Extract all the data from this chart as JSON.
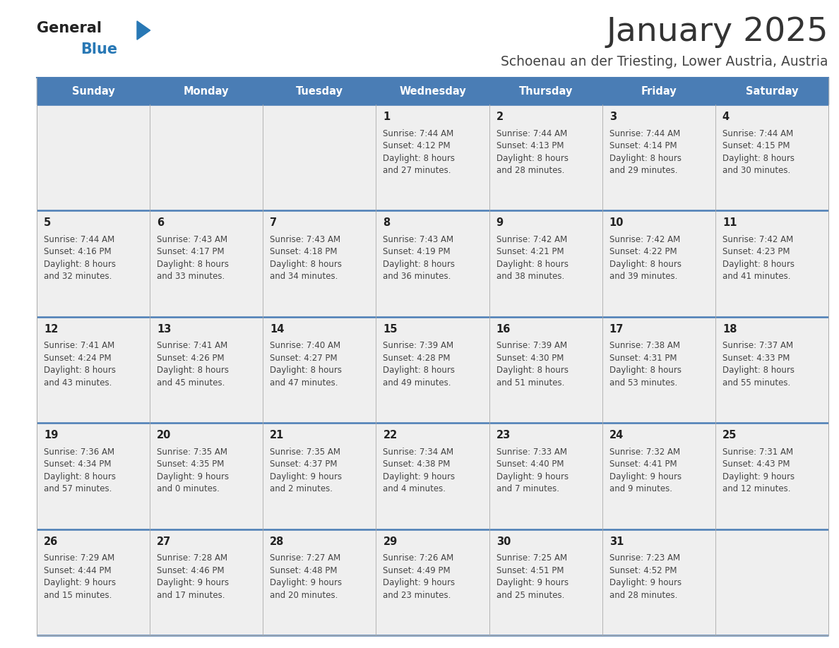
{
  "title": "January 2025",
  "subtitle": "Schoenau an der Triesting, Lower Austria, Austria",
  "days_of_week": [
    "Sunday",
    "Monday",
    "Tuesday",
    "Wednesday",
    "Thursday",
    "Friday",
    "Saturday"
  ],
  "header_bg_color": "#4a7db5",
  "header_text_color": "#ffffff",
  "cell_bg_color": "#efefef",
  "divider_color": "#4a7db5",
  "title_color": "#333333",
  "subtitle_color": "#444444",
  "day_num_color": "#222222",
  "cell_text_color": "#444444",
  "logo_general_color": "#222222",
  "logo_blue_color": "#2878b5",
  "logo_triangle_color": "#2878b5",
  "grid_line_color": "#aaaaaa",
  "weeks": [
    [
      {
        "day": null,
        "sunrise": null,
        "sunset": null,
        "daylight": null
      },
      {
        "day": null,
        "sunrise": null,
        "sunset": null,
        "daylight": null
      },
      {
        "day": null,
        "sunrise": null,
        "sunset": null,
        "daylight": null
      },
      {
        "day": 1,
        "sunrise": "Sunrise: 7:44 AM",
        "sunset": "Sunset: 4:12 PM",
        "daylight": "Daylight: 8 hours\nand 27 minutes."
      },
      {
        "day": 2,
        "sunrise": "Sunrise: 7:44 AM",
        "sunset": "Sunset: 4:13 PM",
        "daylight": "Daylight: 8 hours\nand 28 minutes."
      },
      {
        "day": 3,
        "sunrise": "Sunrise: 7:44 AM",
        "sunset": "Sunset: 4:14 PM",
        "daylight": "Daylight: 8 hours\nand 29 minutes."
      },
      {
        "day": 4,
        "sunrise": "Sunrise: 7:44 AM",
        "sunset": "Sunset: 4:15 PM",
        "daylight": "Daylight: 8 hours\nand 30 minutes."
      }
    ],
    [
      {
        "day": 5,
        "sunrise": "Sunrise: 7:44 AM",
        "sunset": "Sunset: 4:16 PM",
        "daylight": "Daylight: 8 hours\nand 32 minutes."
      },
      {
        "day": 6,
        "sunrise": "Sunrise: 7:43 AM",
        "sunset": "Sunset: 4:17 PM",
        "daylight": "Daylight: 8 hours\nand 33 minutes."
      },
      {
        "day": 7,
        "sunrise": "Sunrise: 7:43 AM",
        "sunset": "Sunset: 4:18 PM",
        "daylight": "Daylight: 8 hours\nand 34 minutes."
      },
      {
        "day": 8,
        "sunrise": "Sunrise: 7:43 AM",
        "sunset": "Sunset: 4:19 PM",
        "daylight": "Daylight: 8 hours\nand 36 minutes."
      },
      {
        "day": 9,
        "sunrise": "Sunrise: 7:42 AM",
        "sunset": "Sunset: 4:21 PM",
        "daylight": "Daylight: 8 hours\nand 38 minutes."
      },
      {
        "day": 10,
        "sunrise": "Sunrise: 7:42 AM",
        "sunset": "Sunset: 4:22 PM",
        "daylight": "Daylight: 8 hours\nand 39 minutes."
      },
      {
        "day": 11,
        "sunrise": "Sunrise: 7:42 AM",
        "sunset": "Sunset: 4:23 PM",
        "daylight": "Daylight: 8 hours\nand 41 minutes."
      }
    ],
    [
      {
        "day": 12,
        "sunrise": "Sunrise: 7:41 AM",
        "sunset": "Sunset: 4:24 PM",
        "daylight": "Daylight: 8 hours\nand 43 minutes."
      },
      {
        "day": 13,
        "sunrise": "Sunrise: 7:41 AM",
        "sunset": "Sunset: 4:26 PM",
        "daylight": "Daylight: 8 hours\nand 45 minutes."
      },
      {
        "day": 14,
        "sunrise": "Sunrise: 7:40 AM",
        "sunset": "Sunset: 4:27 PM",
        "daylight": "Daylight: 8 hours\nand 47 minutes."
      },
      {
        "day": 15,
        "sunrise": "Sunrise: 7:39 AM",
        "sunset": "Sunset: 4:28 PM",
        "daylight": "Daylight: 8 hours\nand 49 minutes."
      },
      {
        "day": 16,
        "sunrise": "Sunrise: 7:39 AM",
        "sunset": "Sunset: 4:30 PM",
        "daylight": "Daylight: 8 hours\nand 51 minutes."
      },
      {
        "day": 17,
        "sunrise": "Sunrise: 7:38 AM",
        "sunset": "Sunset: 4:31 PM",
        "daylight": "Daylight: 8 hours\nand 53 minutes."
      },
      {
        "day": 18,
        "sunrise": "Sunrise: 7:37 AM",
        "sunset": "Sunset: 4:33 PM",
        "daylight": "Daylight: 8 hours\nand 55 minutes."
      }
    ],
    [
      {
        "day": 19,
        "sunrise": "Sunrise: 7:36 AM",
        "sunset": "Sunset: 4:34 PM",
        "daylight": "Daylight: 8 hours\nand 57 minutes."
      },
      {
        "day": 20,
        "sunrise": "Sunrise: 7:35 AM",
        "sunset": "Sunset: 4:35 PM",
        "daylight": "Daylight: 9 hours\nand 0 minutes."
      },
      {
        "day": 21,
        "sunrise": "Sunrise: 7:35 AM",
        "sunset": "Sunset: 4:37 PM",
        "daylight": "Daylight: 9 hours\nand 2 minutes."
      },
      {
        "day": 22,
        "sunrise": "Sunrise: 7:34 AM",
        "sunset": "Sunset: 4:38 PM",
        "daylight": "Daylight: 9 hours\nand 4 minutes."
      },
      {
        "day": 23,
        "sunrise": "Sunrise: 7:33 AM",
        "sunset": "Sunset: 4:40 PM",
        "daylight": "Daylight: 9 hours\nand 7 minutes."
      },
      {
        "day": 24,
        "sunrise": "Sunrise: 7:32 AM",
        "sunset": "Sunset: 4:41 PM",
        "daylight": "Daylight: 9 hours\nand 9 minutes."
      },
      {
        "day": 25,
        "sunrise": "Sunrise: 7:31 AM",
        "sunset": "Sunset: 4:43 PM",
        "daylight": "Daylight: 9 hours\nand 12 minutes."
      }
    ],
    [
      {
        "day": 26,
        "sunrise": "Sunrise: 7:29 AM",
        "sunset": "Sunset: 4:44 PM",
        "daylight": "Daylight: 9 hours\nand 15 minutes."
      },
      {
        "day": 27,
        "sunrise": "Sunrise: 7:28 AM",
        "sunset": "Sunset: 4:46 PM",
        "daylight": "Daylight: 9 hours\nand 17 minutes."
      },
      {
        "day": 28,
        "sunrise": "Sunrise: 7:27 AM",
        "sunset": "Sunset: 4:48 PM",
        "daylight": "Daylight: 9 hours\nand 20 minutes."
      },
      {
        "day": 29,
        "sunrise": "Sunrise: 7:26 AM",
        "sunset": "Sunset: 4:49 PM",
        "daylight": "Daylight: 9 hours\nand 23 minutes."
      },
      {
        "day": 30,
        "sunrise": "Sunrise: 7:25 AM",
        "sunset": "Sunset: 4:51 PM",
        "daylight": "Daylight: 9 hours\nand 25 minutes."
      },
      {
        "day": 31,
        "sunrise": "Sunrise: 7:23 AM",
        "sunset": "Sunset: 4:52 PM",
        "daylight": "Daylight: 9 hours\nand 28 minutes."
      },
      {
        "day": null,
        "sunrise": null,
        "sunset": null,
        "daylight": null
      }
    ]
  ]
}
